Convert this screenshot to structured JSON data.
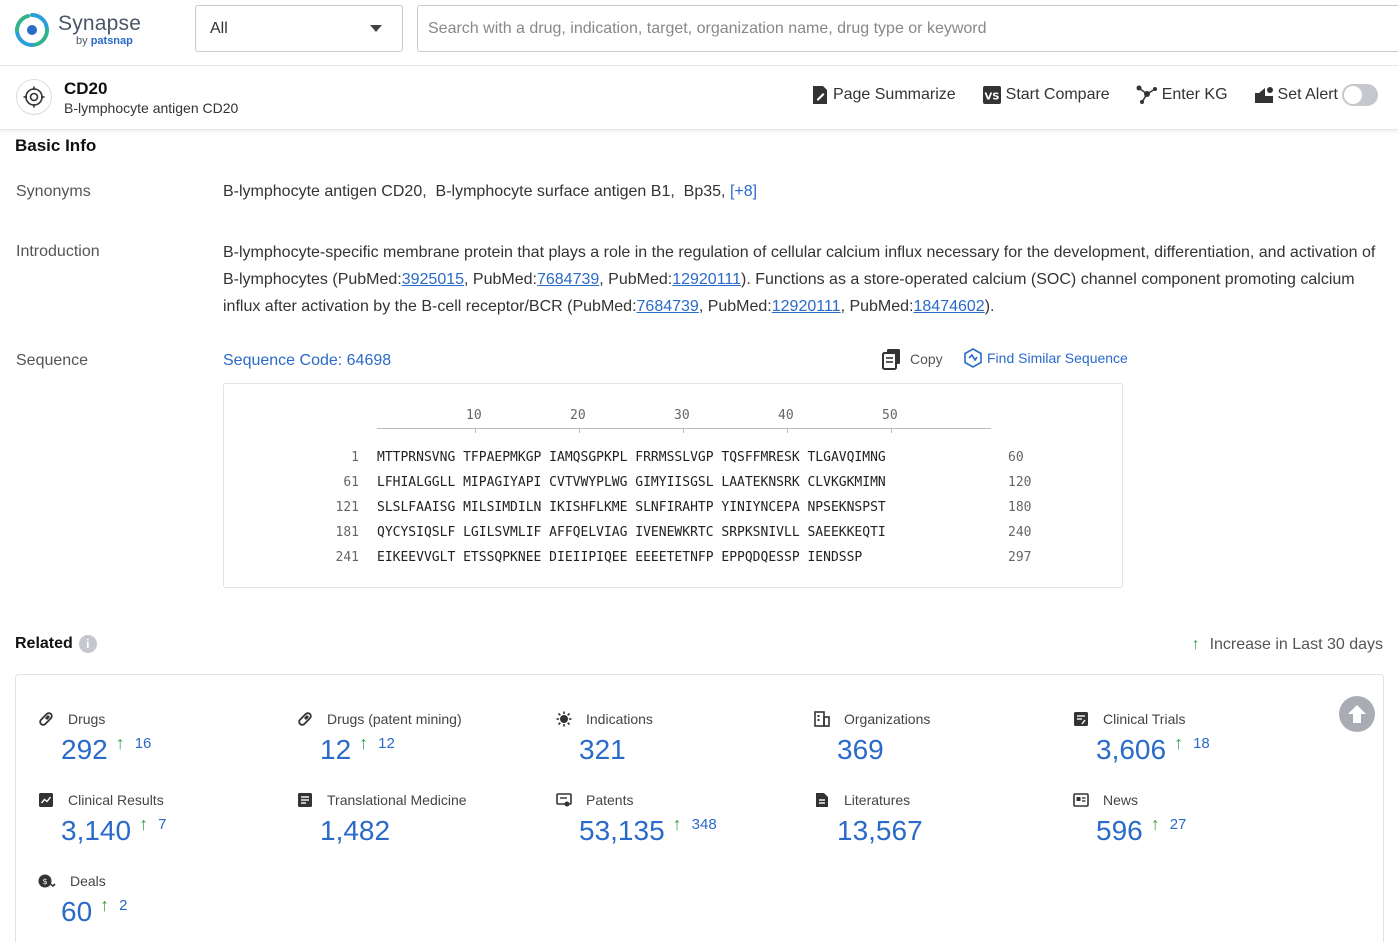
{
  "brand": {
    "name": "Synapse",
    "by": "by",
    "partner": "patsnap"
  },
  "search": {
    "scope": "All",
    "placeholder": "Search with a drug, indication, target, organization name, drug type or keyword"
  },
  "entity": {
    "title": "CD20",
    "subtitle": "B-lymphocyte antigen CD20"
  },
  "actions": {
    "summarize": "Page Summarize",
    "compare": "Start Compare",
    "kg": "Enter KG",
    "alert": "Set Alert"
  },
  "basic_info": {
    "title": "Basic Info",
    "synonyms_label": "Synonyms",
    "synonyms": "B-lymphocyte antigen CD20,  B-lymphocyte surface antigen B1,  Bp35, ",
    "synonyms_more": "[+8]",
    "intro_label": "Introduction",
    "intro": {
      "t1": "B-lymphocyte-specific membrane protein that plays a role in the regulation of cellular calcium influx necessary for the development, differentiation, and activation of B-lymphocytes (PubMed:",
      "l1": "3925015",
      "t2": ", PubMed:",
      "l2": "7684739",
      "t3": ", PubMed:",
      "l3": "12920111",
      "t4": "). Functions as a store-operated calcium (SOC) channel component promoting calcium influx after activation by the B-cell receptor/BCR (PubMed:",
      "l4": "7684739",
      "t5": ", PubMed:",
      "l5": "12920111",
      "t6": ", PubMed:",
      "l6": "18474602",
      "t7": ")."
    },
    "sequence_label": "Sequence",
    "sequence_code": "Sequence Code: 64698",
    "copy": "Copy",
    "find_similar": "Find Similar Sequence",
    "ruler": [
      "10",
      "20",
      "30",
      "40",
      "50"
    ],
    "rows": [
      {
        "start": "1",
        "seq": "MTTPRNSVNG TFPAEPMKGP IAMQSGPKPL FRRMSSLVGP TQSFFMRESK TLGAVQIMNG",
        "end": "60"
      },
      {
        "start": "61",
        "seq": "LFHIALGGLL MIPAGIYAPI CVTVWYPLWG GIMYIISGSL LAATEKNSRK CLVKGKMIMN",
        "end": "120"
      },
      {
        "start": "121",
        "seq": "SLSLFAAISG MILSIMDILN IKISHFLKME SLNFIRAHTP YINIYNCEPA NPSEKNSPST",
        "end": "180"
      },
      {
        "start": "181",
        "seq": "QYCYSIQSLF LGILSVMLIF AFFQELVIAG IVENEWKRTC SRPKSNIVLL SAEEKKEQTI",
        "end": "240"
      },
      {
        "start": "241",
        "seq": "EIKEEVVGLT ETSSQPKNEE DIEIIPIQEE EEEETETNFP EPPQDQESSP IENDSSP",
        "end": "297"
      }
    ]
  },
  "related": {
    "title": "Related",
    "info": "i",
    "legend": "Increase in Last 30 days",
    "up_symbol": "↑",
    "stats": [
      {
        "label": "Drugs",
        "value": "292",
        "inc": "16",
        "icon": "pill-icon"
      },
      {
        "label": "Drugs (patent mining)",
        "value": "12",
        "inc": "12",
        "icon": "pill-icon"
      },
      {
        "label": "Indications",
        "value": "321",
        "inc": "",
        "icon": "virus-icon"
      },
      {
        "label": "Organizations",
        "value": "369",
        "inc": "",
        "icon": "building-icon"
      },
      {
        "label": "Clinical Trials",
        "value": "3,606",
        "inc": "18",
        "icon": "clipboard-icon"
      },
      {
        "label": "Clinical Results",
        "value": "3,140",
        "inc": "7",
        "icon": "chart-doc-icon"
      },
      {
        "label": "Translational Medicine",
        "value": "1,482",
        "inc": "",
        "icon": "doc-icon"
      },
      {
        "label": "Patents",
        "value": "53,135",
        "inc": "348",
        "icon": "patent-icon"
      },
      {
        "label": "Literatures",
        "value": "13,567",
        "inc": "",
        "icon": "literature-icon"
      },
      {
        "label": "News",
        "value": "596",
        "inc": "27",
        "icon": "news-icon"
      },
      {
        "label": "Deals",
        "value": "60",
        "inc": "2",
        "icon": "deal-icon"
      }
    ]
  }
}
